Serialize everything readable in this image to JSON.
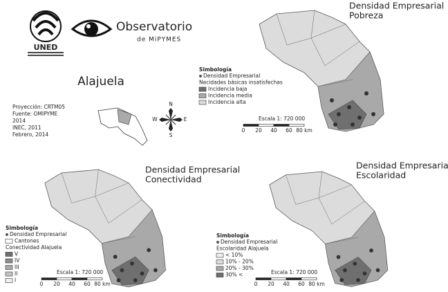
{
  "header": {
    "logo_text": "UNED",
    "observatory": "Observatorio",
    "subtitle": "de MiPYMES"
  },
  "region": "Alajuela",
  "info": [
    "Proyección: CRTM05",
    "Fuente: OMIPYME",
    "2014",
    "INEC, 2011",
    "Febrero, 2014"
  ],
  "compass": {
    "n": "N",
    "s": "S",
    "e": "E",
    "w": "W"
  },
  "maps": [
    {
      "title": [
        "Densidad Empresarial",
        "Pobreza"
      ],
      "legend": {
        "title": "Simbología",
        "items": [
          "Densidad Empresarial",
          "Necidades básicas insatisfechas",
          "Incidencia baja",
          "Incidencia media",
          "Incidencia alta"
        ]
      },
      "scale": "Escala 1: 720 000",
      "scale_ticks": [
        "0",
        "20",
        "40",
        "60",
        "80 km"
      ]
    },
    {
      "title": [
        "Densidad Empresarial",
        "Conectividad"
      ],
      "legend": {
        "title": "Simbología",
        "items": [
          "Densidad Empresarial",
          "Cantones",
          "Conectividad Alajuela",
          "V",
          "IV",
          "III",
          "II",
          "I"
        ]
      },
      "scale": "Escala 1: 720 000",
      "scale_ticks": [
        "0",
        "20",
        "40",
        "60",
        "80 km"
      ]
    },
    {
      "title": [
        "Densidad Empresarial",
        "Escolaridad"
      ],
      "legend": {
        "title": "Simbología",
        "items": [
          "Densidad Empresarial",
          "Escolaridad Alajuela",
          "< 10%",
          "10% - 20%",
          "20% - 30%",
          "30% <"
        ]
      },
      "scale": "Escala 1: 720 000",
      "scale_ticks": [
        "0",
        "20",
        "40",
        "60",
        "80 km"
      ]
    }
  ]
}
